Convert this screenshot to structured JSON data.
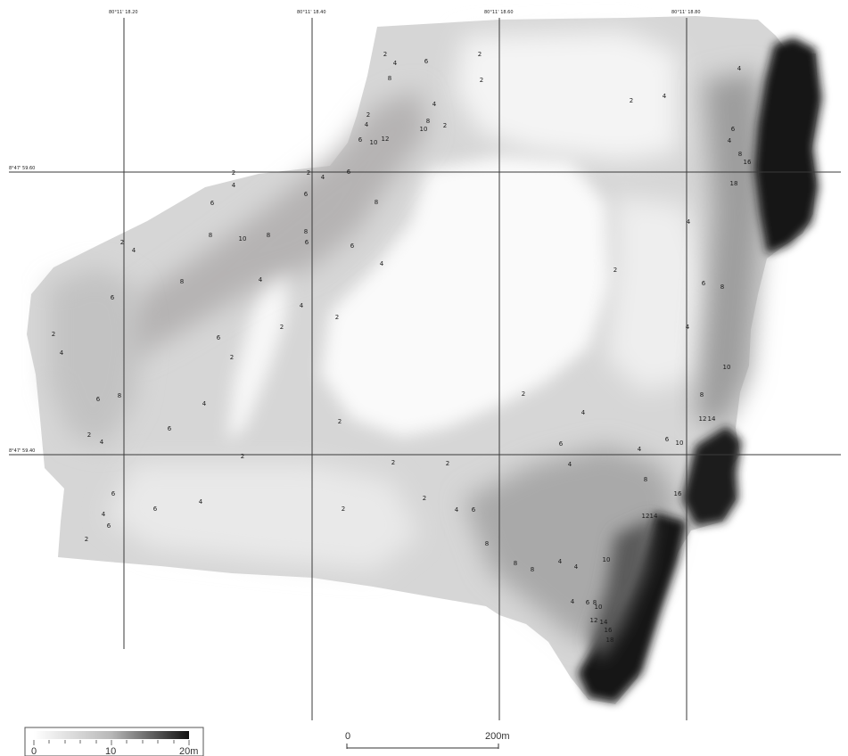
{
  "grid": {
    "lon_labels": [
      "80°11' 18.20",
      "80°11' 18.40",
      "80°11' 18.60",
      "80°11' 18.80"
    ],
    "lat_labels": [
      "8°47' 59.60",
      "8°47' 59.40"
    ]
  },
  "depth_legend": {
    "tick_labels": [
      "0",
      "10",
      "20m"
    ],
    "min": 0,
    "max": 20,
    "gradient_colors": [
      "#ffffff",
      "#111111"
    ]
  },
  "scale_bar": {
    "start_label": "0",
    "end_label": "200m"
  },
  "soundings": [
    {
      "v": "2",
      "lx": 432,
      "ly": 63
    },
    {
      "v": "4",
      "lx": 443,
      "ly": 73
    },
    {
      "v": "6",
      "lx": 478,
      "ly": 71
    },
    {
      "v": "8",
      "lx": 437,
      "ly": 90
    },
    {
      "v": "2",
      "lx": 538,
      "ly": 63
    },
    {
      "v": "2",
      "lx": 540,
      "ly": 92
    },
    {
      "v": "4",
      "lx": 487,
      "ly": 119
    },
    {
      "v": "2",
      "lx": 413,
      "ly": 131
    },
    {
      "v": "4",
      "lx": 411,
      "ly": 142
    },
    {
      "v": "8",
      "lx": 480,
      "ly": 138
    },
    {
      "v": "10",
      "lx": 475,
      "ly": 147
    },
    {
      "v": "2",
      "lx": 499,
      "ly": 143
    },
    {
      "v": "6",
      "lx": 404,
      "ly": 159
    },
    {
      "v": "10",
      "lx": 419,
      "ly": 162
    },
    {
      "v": "12",
      "lx": 432,
      "ly": 158
    },
    {
      "v": "2",
      "lx": 708,
      "ly": 115
    },
    {
      "v": "4",
      "lx": 745,
      "ly": 110
    },
    {
      "v": "4",
      "lx": 829,
      "ly": 79
    },
    {
      "v": "6",
      "lx": 822,
      "ly": 147
    },
    {
      "v": "4",
      "lx": 818,
      "ly": 160
    },
    {
      "v": "8",
      "lx": 830,
      "ly": 175
    },
    {
      "v": "16",
      "lx": 838,
      "ly": 184
    },
    {
      "v": "18",
      "lx": 823,
      "ly": 208
    },
    {
      "v": "2",
      "lx": 262,
      "ly": 196
    },
    {
      "v": "4",
      "lx": 262,
      "ly": 210
    },
    {
      "v": "2",
      "lx": 346,
      "ly": 196
    },
    {
      "v": "4",
      "lx": 362,
      "ly": 201
    },
    {
      "v": "6",
      "lx": 391,
      "ly": 195
    },
    {
      "v": "6",
      "lx": 238,
      "ly": 230
    },
    {
      "v": "6",
      "lx": 343,
      "ly": 220
    },
    {
      "v": "8",
      "lx": 422,
      "ly": 229
    },
    {
      "v": "8",
      "lx": 236,
      "ly": 266
    },
    {
      "v": "10",
      "lx": 272,
      "ly": 270
    },
    {
      "v": "8",
      "lx": 301,
      "ly": 266
    },
    {
      "v": "8",
      "lx": 343,
      "ly": 262
    },
    {
      "v": "6",
      "lx": 344,
      "ly": 274
    },
    {
      "v": "6",
      "lx": 395,
      "ly": 278
    },
    {
      "v": "2",
      "lx": 137,
      "ly": 274
    },
    {
      "v": "4",
      "lx": 150,
      "ly": 283
    },
    {
      "v": "4",
      "lx": 428,
      "ly": 298
    },
    {
      "v": "8",
      "lx": 204,
      "ly": 318
    },
    {
      "v": "4",
      "lx": 292,
      "ly": 316
    },
    {
      "v": "6",
      "lx": 126,
      "ly": 336
    },
    {
      "v": "4",
      "lx": 338,
      "ly": 345
    },
    {
      "v": "2",
      "lx": 378,
      "ly": 358
    },
    {
      "v": "2",
      "lx": 316,
      "ly": 369
    },
    {
      "v": "2",
      "lx": 60,
      "ly": 377
    },
    {
      "v": "6",
      "lx": 245,
      "ly": 381
    },
    {
      "v": "4",
      "lx": 69,
      "ly": 398
    },
    {
      "v": "2",
      "lx": 260,
      "ly": 403
    },
    {
      "v": "6",
      "lx": 110,
      "ly": 450
    },
    {
      "v": "8",
      "lx": 134,
      "ly": 446
    },
    {
      "v": "4",
      "lx": 229,
      "ly": 455
    },
    {
      "v": "6",
      "lx": 190,
      "ly": 483
    },
    {
      "v": "2",
      "lx": 100,
      "ly": 490
    },
    {
      "v": "4",
      "lx": 114,
      "ly": 498
    },
    {
      "v": "2",
      "lx": 381,
      "ly": 475
    },
    {
      "v": "2",
      "lx": 690,
      "ly": 305
    },
    {
      "v": "4",
      "lx": 772,
      "ly": 251
    },
    {
      "v": "6",
      "lx": 789,
      "ly": 320
    },
    {
      "v": "8",
      "lx": 810,
      "ly": 324
    },
    {
      "v": "4",
      "lx": 771,
      "ly": 369
    },
    {
      "v": "10",
      "lx": 815,
      "ly": 414
    },
    {
      "v": "8",
      "lx": 787,
      "ly": 445
    },
    {
      "v": "12",
      "lx": 788,
      "ly": 472
    },
    {
      "v": "14",
      "lx": 798,
      "ly": 472
    },
    {
      "v": "2",
      "lx": 587,
      "ly": 444
    },
    {
      "v": "4",
      "lx": 654,
      "ly": 465
    },
    {
      "v": "6",
      "lx": 629,
      "ly": 500
    },
    {
      "v": "6",
      "lx": 748,
      "ly": 495
    },
    {
      "v": "10",
      "lx": 762,
      "ly": 499
    },
    {
      "v": "4",
      "lx": 717,
      "ly": 506
    },
    {
      "v": "2",
      "lx": 272,
      "ly": 514
    },
    {
      "v": "2",
      "lx": 441,
      "ly": 521
    },
    {
      "v": "2",
      "lx": 502,
      "ly": 522
    },
    {
      "v": "4",
      "lx": 639,
      "ly": 523
    },
    {
      "v": "8",
      "lx": 724,
      "ly": 540
    },
    {
      "v": "16",
      "lx": 760,
      "ly": 556
    },
    {
      "v": "12",
      "lx": 724,
      "ly": 581
    },
    {
      "v": "14",
      "lx": 733,
      "ly": 581
    },
    {
      "v": "6",
      "lx": 127,
      "ly": 556
    },
    {
      "v": "6",
      "lx": 174,
      "ly": 573
    },
    {
      "v": "4",
      "lx": 225,
      "ly": 565
    },
    {
      "v": "2",
      "lx": 385,
      "ly": 573
    },
    {
      "v": "2",
      "lx": 476,
      "ly": 561
    },
    {
      "v": "4",
      "lx": 512,
      "ly": 574
    },
    {
      "v": "6",
      "lx": 531,
      "ly": 574
    },
    {
      "v": "4",
      "lx": 116,
      "ly": 579
    },
    {
      "v": "6",
      "lx": 122,
      "ly": 592
    },
    {
      "v": "2",
      "lx": 97,
      "ly": 607
    },
    {
      "v": "8",
      "lx": 546,
      "ly": 612
    },
    {
      "v": "8",
      "lx": 578,
      "ly": 634
    },
    {
      "v": "8",
      "lx": 597,
      "ly": 641
    },
    {
      "v": "4",
      "lx": 628,
      "ly": 632
    },
    {
      "v": "4",
      "lx": 646,
      "ly": 638
    },
    {
      "v": "10",
      "lx": 680,
      "ly": 630
    },
    {
      "v": "4",
      "lx": 642,
      "ly": 677
    },
    {
      "v": "6",
      "lx": 659,
      "ly": 678
    },
    {
      "v": "8",
      "lx": 667,
      "ly": 678
    },
    {
      "v": "10",
      "lx": 671,
      "ly": 683
    },
    {
      "v": "12",
      "lx": 666,
      "ly": 698
    },
    {
      "v": "14",
      "lx": 677,
      "ly": 700
    },
    {
      "v": "16",
      "lx": 682,
      "ly": 709
    },
    {
      "v": "18",
      "lx": 684,
      "ly": 720
    }
  ]
}
